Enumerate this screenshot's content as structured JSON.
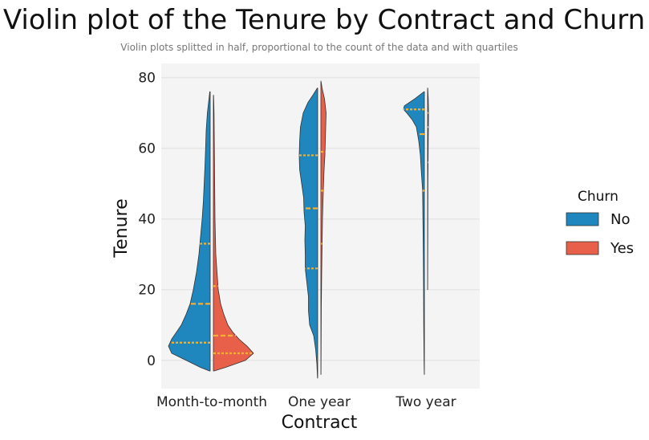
{
  "chart_data": {
    "type": "violin",
    "title": "Violin plot of the Tenure by Contract and Churn",
    "subtitle": "Violin plots splitted in half, proportional to the count of the data and with quartiles",
    "xlabel": "Contract",
    "ylabel": "Tenure",
    "categories": [
      "Month-to-month",
      "One year",
      "Two year"
    ],
    "ylim": [
      -8,
      84
    ],
    "yticks": [
      0,
      20,
      40,
      60,
      80
    ],
    "grid": true,
    "legend": {
      "title": "Churn",
      "position": "right",
      "entries": [
        {
          "label": "No",
          "color": "#1f87bd"
        },
        {
          "label": "Yes",
          "color": "#e8604a"
        }
      ]
    },
    "quartile_color": "#f2b134",
    "series": [
      {
        "name": "No",
        "side": "left",
        "color": "#1f87bd",
        "groups": [
          {
            "category": "Month-to-month",
            "quartiles": [
              5,
              16,
              33
            ],
            "density": [
              [
                -3,
                0.01
              ],
              [
                -2,
                0.12
              ],
              [
                0,
                0.3
              ],
              [
                2,
                0.48
              ],
              [
                4,
                0.52
              ],
              [
                6,
                0.48
              ],
              [
                8,
                0.42
              ],
              [
                10,
                0.36
              ],
              [
                13,
                0.3
              ],
              [
                16,
                0.25
              ],
              [
                20,
                0.21
              ],
              [
                25,
                0.17
              ],
              [
                30,
                0.14
              ],
              [
                35,
                0.12
              ],
              [
                40,
                0.1
              ],
              [
                45,
                0.085
              ],
              [
                50,
                0.075
              ],
              [
                55,
                0.065
              ],
              [
                60,
                0.057
              ],
              [
                65,
                0.05
              ],
              [
                70,
                0.035
              ],
              [
                73,
                0.02
              ],
              [
                76,
                0.005
              ]
            ]
          },
          {
            "category": "One year",
            "quartiles": [
              26,
              43,
              58
            ],
            "density": [
              [
                -5,
                0.002
              ],
              [
                -1,
                0.01
              ],
              [
                3,
                0.025
              ],
              [
                7,
                0.05
              ],
              [
                10,
                0.1
              ],
              [
                14,
                0.115
              ],
              [
                18,
                0.115
              ],
              [
                22,
                0.135
              ],
              [
                26,
                0.155
              ],
              [
                30,
                0.155
              ],
              [
                34,
                0.16
              ],
              [
                38,
                0.155
              ],
              [
                42,
                0.17
              ],
              [
                46,
                0.175
              ],
              [
                50,
                0.2
              ],
              [
                54,
                0.225
              ],
              [
                58,
                0.23
              ],
              [
                62,
                0.225
              ],
              [
                66,
                0.215
              ],
              [
                70,
                0.18
              ],
              [
                73,
                0.12
              ],
              [
                75,
                0.06
              ],
              [
                77,
                0.005
              ]
            ]
          },
          {
            "category": "Two year",
            "quartiles": [
              48,
              64,
              71
            ],
            "density": [
              [
                -4,
                0.001
              ],
              [
                0,
                0.004
              ],
              [
                10,
                0.008
              ],
              [
                20,
                0.01
              ],
              [
                30,
                0.013
              ],
              [
                40,
                0.018
              ],
              [
                48,
                0.022
              ],
              [
                54,
                0.04
              ],
              [
                58,
                0.05
              ],
              [
                62,
                0.07
              ],
              [
                66,
                0.1
              ],
              [
                68,
                0.15
              ],
              [
                70,
                0.22
              ],
              [
                71,
                0.26
              ],
              [
                72,
                0.25
              ],
              [
                74,
                0.12
              ],
              [
                76,
                0.005
              ]
            ]
          }
        ]
      },
      {
        "name": "Yes",
        "side": "right",
        "color": "#e8604a",
        "groups": [
          {
            "category": "Month-to-month",
            "quartiles": [
              2,
              7,
              21
            ],
            "density": [
              [
                -3,
                0.01
              ],
              [
                -2,
                0.15
              ],
              [
                0,
                0.4
              ],
              [
                2,
                0.5
              ],
              [
                4,
                0.42
              ],
              [
                6,
                0.32
              ],
              [
                8,
                0.24
              ],
              [
                10,
                0.18
              ],
              [
                13,
                0.13
              ],
              [
                16,
                0.09
              ],
              [
                20,
                0.06
              ],
              [
                25,
                0.045
              ],
              [
                30,
                0.03
              ],
              [
                35,
                0.025
              ],
              [
                40,
                0.02
              ],
              [
                45,
                0.018
              ],
              [
                50,
                0.016
              ],
              [
                55,
                0.014
              ],
              [
                60,
                0.012
              ],
              [
                65,
                0.01
              ],
              [
                70,
                0.008
              ],
              [
                73,
                0.005
              ],
              [
                75,
                0.002
              ]
            ]
          },
          {
            "category": "One year",
            "quartiles": [
              33,
              48,
              59
            ],
            "density": [
              [
                -4,
                0.001
              ],
              [
                5,
                0.003
              ],
              [
                15,
                0.005
              ],
              [
                25,
                0.01
              ],
              [
                33,
                0.015
              ],
              [
                40,
                0.02
              ],
              [
                48,
                0.03
              ],
              [
                54,
                0.04
              ],
              [
                58,
                0.05
              ],
              [
                62,
                0.055
              ],
              [
                66,
                0.06
              ],
              [
                70,
                0.065
              ],
              [
                74,
                0.045
              ],
              [
                77,
                0.015
              ],
              [
                79,
                0.001
              ]
            ]
          },
          {
            "category": "Two year",
            "quartiles": [
              56,
              66,
              70
            ],
            "density": [
              [
                20,
                0.001
              ],
              [
                40,
                0.003
              ],
              [
                50,
                0.004
              ],
              [
                56,
                0.006
              ],
              [
                62,
                0.008
              ],
              [
                66,
                0.01
              ],
              [
                70,
                0.012
              ],
              [
                74,
                0.008
              ],
              [
                77,
                0.002
              ]
            ]
          }
        ]
      }
    ]
  }
}
